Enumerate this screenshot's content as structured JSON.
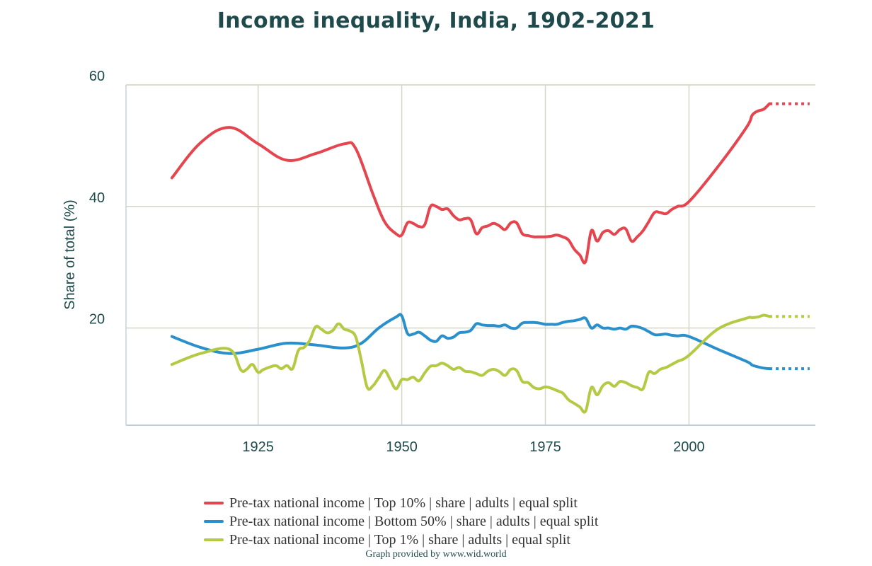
{
  "chart_data": {
    "type": "line",
    "title": "Income inequality, India, 1902-2021",
    "xlabel": "",
    "ylabel": "Share of total (%)",
    "xlim": [
      1902,
      2022
    ],
    "ylim": [
      4,
      60
    ],
    "xticks": [
      1925,
      1950,
      1975,
      2000
    ],
    "yticks": [
      20,
      40,
      60
    ],
    "grid": true,
    "legend_position": "bottom-center",
    "projection_end_year": 2021,
    "series": [
      {
        "name": "Pre-tax national income | Top 10% | share | adults | equal split",
        "color": "#e5454f",
        "x": [
          1910,
          1915,
          1920,
          1925,
          1930,
          1935,
          1940,
          1942,
          1945,
          1947,
          1949,
          1950,
          1951,
          1952,
          1953,
          1954,
          1955,
          1956,
          1957,
          1958,
          1959,
          1960,
          1961,
          1962,
          1963,
          1964,
          1965,
          1966,
          1967,
          1968,
          1969,
          1970,
          1971,
          1972,
          1973,
          1974,
          1975,
          1976,
          1977,
          1978,
          1979,
          1980,
          1981,
          1982,
          1983,
          1984,
          1985,
          1986,
          1987,
          1988,
          1989,
          1990,
          1991,
          1992,
          1993,
          1994,
          1995,
          1996,
          1997,
          1998,
          2000,
          2005,
          2010,
          2011,
          2012,
          2013,
          2014
        ],
        "values": [
          44.7,
          50.5,
          53.0,
          50.3,
          47.6,
          48.7,
          50.3,
          49.5,
          42.0,
          37.5,
          35.5,
          35.3,
          37.3,
          37.2,
          36.7,
          37.0,
          40.0,
          40.0,
          39.5,
          39.6,
          38.5,
          37.8,
          38.0,
          37.8,
          35.5,
          36.5,
          36.8,
          37.2,
          36.8,
          36.2,
          37.3,
          37.3,
          35.5,
          35.2,
          35.0,
          35.0,
          35.0,
          35.1,
          35.3,
          35.0,
          34.5,
          33.0,
          32.0,
          30.9,
          36.0,
          34.3,
          35.7,
          36.0,
          35.4,
          36.2,
          36.3,
          34.3,
          35.0,
          36.0,
          37.5,
          39.0,
          39.0,
          38.8,
          39.5,
          40.0,
          40.8,
          46.5,
          53.0,
          55.0,
          55.7,
          56.0,
          56.9
        ],
        "projection": [
          [
            2014,
            56.9
          ],
          [
            2021,
            56.9
          ]
        ]
      },
      {
        "name": "Pre-tax national income | Bottom 50% | share | adults | equal split",
        "color": "#2a90cc",
        "x": [
          1910,
          1915,
          1920,
          1925,
          1930,
          1935,
          1940,
          1943,
          1946,
          1949,
          1950,
          1951,
          1952,
          1953,
          1954,
          1955,
          1956,
          1957,
          1958,
          1959,
          1960,
          1961,
          1962,
          1963,
          1964,
          1965,
          1966,
          1967,
          1968,
          1969,
          1970,
          1971,
          1972,
          1973,
          1974,
          1975,
          1976,
          1977,
          1978,
          1979,
          1980,
          1981,
          1982,
          1983,
          1984,
          1985,
          1986,
          1987,
          1988,
          1989,
          1990,
          1991,
          1992,
          1993,
          1994,
          1995,
          1996,
          1997,
          1998,
          2000,
          2005,
          2010,
          2011,
          2012,
          2013,
          2014
        ],
        "values": [
          18.6,
          16.8,
          15.8,
          16.5,
          17.5,
          17.2,
          16.7,
          17.5,
          20.0,
          21.8,
          22.0,
          19.1,
          19.0,
          19.3,
          18.7,
          18.0,
          17.8,
          18.7,
          18.3,
          18.5,
          19.2,
          19.3,
          19.6,
          20.7,
          20.5,
          20.4,
          20.4,
          20.3,
          20.5,
          20.0,
          20.0,
          20.8,
          20.9,
          20.9,
          20.8,
          20.6,
          20.6,
          20.6,
          20.9,
          21.1,
          21.2,
          21.4,
          21.6,
          20.0,
          20.5,
          20.0,
          20.0,
          19.8,
          20.0,
          19.8,
          20.3,
          20.2,
          19.9,
          19.4,
          18.9,
          18.9,
          19.0,
          18.8,
          18.7,
          18.6,
          16.5,
          14.5,
          13.9,
          13.6,
          13.4,
          13.3
        ],
        "projection": [
          [
            2014,
            13.3
          ],
          [
            2021,
            13.3
          ]
        ]
      },
      {
        "name": "Pre-tax national income | Top 1% | share | adults | equal split",
        "color": "#b5c944",
        "x": [
          1910,
          1915,
          1920,
          1922,
          1923,
          1924,
          1925,
          1926,
          1928,
          1929,
          1930,
          1931,
          1932,
          1933,
          1934,
          1935,
          1936,
          1937,
          1938,
          1939,
          1940,
          1941,
          1942,
          1943,
          1944,
          1945,
          1946,
          1947,
          1948,
          1949,
          1950,
          1951,
          1952,
          1953,
          1954,
          1955,
          1956,
          1957,
          1958,
          1959,
          1960,
          1961,
          1962,
          1963,
          1964,
          1965,
          1966,
          1967,
          1968,
          1969,
          1970,
          1971,
          1972,
          1973,
          1974,
          1975,
          1976,
          1977,
          1978,
          1979,
          1980,
          1981,
          1982,
          1983,
          1984,
          1985,
          1986,
          1987,
          1988,
          1989,
          1990,
          1991,
          1992,
          1993,
          1994,
          1995,
          1996,
          1997,
          1998,
          2000,
          2005,
          2010,
          2011,
          2012,
          2013,
          2014
        ],
        "values": [
          14.0,
          15.8,
          16.5,
          13.1,
          13.2,
          14.0,
          12.7,
          13.2,
          13.8,
          13.3,
          13.8,
          13.3,
          16.3,
          16.8,
          18.0,
          20.2,
          19.8,
          19.2,
          19.6,
          20.7,
          19.8,
          19.5,
          18.5,
          14.5,
          10.2,
          10.5,
          11.8,
          13.0,
          11.5,
          10.0,
          11.5,
          11.5,
          11.9,
          11.3,
          12.6,
          13.7,
          13.8,
          14.2,
          13.8,
          13.2,
          13.5,
          12.9,
          12.8,
          12.5,
          12.2,
          12.9,
          13.2,
          12.8,
          12.2,
          13.2,
          13.0,
          11.2,
          11.0,
          10.2,
          10.0,
          10.3,
          10.1,
          9.7,
          9.3,
          8.2,
          7.6,
          7.0,
          6.3,
          10.2,
          9.0,
          10.5,
          11.0,
          10.4,
          11.2,
          11.0,
          10.5,
          10.2,
          10.0,
          12.7,
          12.5,
          13.2,
          13.5,
          14.0,
          14.5,
          15.5,
          19.8,
          21.6,
          21.7,
          21.8,
          22.1,
          21.9
        ],
        "projection": [
          [
            2014,
            21.9
          ],
          [
            2021,
            21.9
          ]
        ]
      }
    ]
  },
  "credit": "Graph provided by www.wid.world"
}
